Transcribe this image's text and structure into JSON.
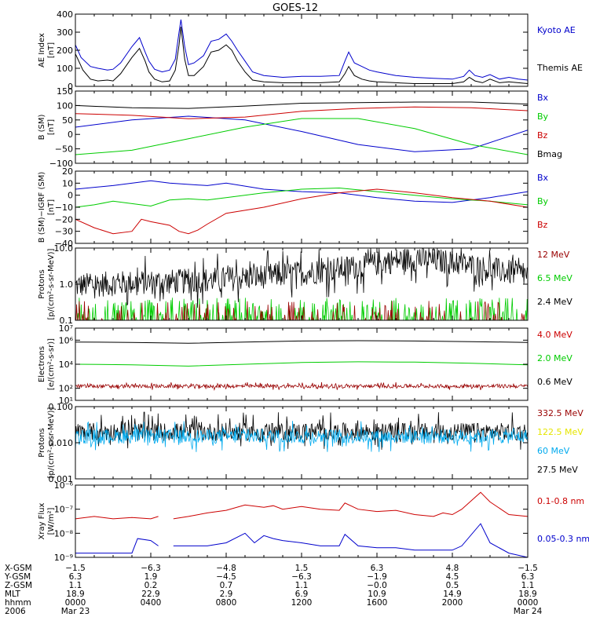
{
  "title": "GOES-12",
  "colors": {
    "black": "#000000",
    "blue": "#0000cc",
    "green": "#00cc00",
    "red": "#cc0000",
    "darkred": "#990000",
    "yellow": "#e6e600",
    "cyan": "#00aaee"
  },
  "chart_data": [
    {
      "type": "line",
      "panel": "ae_index",
      "ylabel_lines": [
        "AE Index",
        "[nT]"
      ],
      "ylim": [
        0,
        400
      ],
      "y_ticks": [
        0,
        100,
        200,
        300,
        400
      ],
      "legend": [
        {
          "text": "Kyoto AE",
          "color": "blue"
        },
        {
          "text": "Themis AE",
          "color": "black"
        }
      ],
      "series": [
        {
          "name": "Kyoto AE",
          "color": "blue",
          "x": [
            0,
            0.3,
            0.8,
            1.2,
            1.7,
            2,
            2.4,
            3.0,
            3.4,
            3.7,
            3.9,
            4.2,
            4.6,
            5.0,
            5.3,
            5.5,
            5.6,
            5.8,
            6.0,
            6.3,
            6.8,
            7.2,
            7.6,
            8.0,
            8.3,
            8.6,
            9.0,
            9.4,
            10,
            11,
            12,
            13,
            14,
            14.3,
            14.5,
            14.8,
            15.2,
            15.6,
            16,
            17,
            18,
            19,
            20,
            20.6,
            20.9,
            21.2,
            21.6,
            22,
            22.5,
            23,
            23.5,
            24
          ],
          "y": [
            230,
            160,
            110,
            100,
            90,
            95,
            130,
            220,
            270,
            190,
            140,
            95,
            80,
            90,
            150,
            300,
            370,
            220,
            120,
            130,
            170,
            250,
            260,
            290,
            250,
            200,
            140,
            80,
            60,
            50,
            55,
            55,
            60,
            140,
            190,
            130,
            110,
            90,
            80,
            60,
            50,
            45,
            40,
            55,
            90,
            60,
            50,
            65,
            40,
            50,
            40,
            35
          ]
        },
        {
          "name": "Themis AE",
          "color": "black",
          "x": [
            0,
            0.4,
            0.8,
            1.2,
            1.7,
            2,
            2.4,
            3.0,
            3.4,
            3.7,
            3.9,
            4.2,
            4.6,
            5.0,
            5.3,
            5.5,
            5.6,
            5.8,
            6.0,
            6.3,
            6.8,
            7.2,
            7.6,
            8.0,
            8.3,
            8.6,
            9.0,
            9.4,
            10,
            11,
            12,
            13,
            14,
            14.3,
            14.5,
            14.8,
            15.2,
            15.6,
            16,
            17,
            18,
            19,
            20,
            20.6,
            20.9,
            21.2,
            21.6,
            22,
            22.5,
            23,
            23.5,
            24
          ],
          "y": [
            180,
            90,
            40,
            30,
            35,
            30,
            70,
            160,
            210,
            140,
            80,
            40,
            25,
            30,
            90,
            230,
            330,
            150,
            60,
            60,
            110,
            190,
            200,
            230,
            200,
            140,
            80,
            35,
            25,
            20,
            20,
            20,
            25,
            70,
            110,
            60,
            40,
            30,
            25,
            20,
            15,
            15,
            15,
            25,
            50,
            30,
            20,
            40,
            20,
            25,
            20,
            15
          ]
        }
      ]
    },
    {
      "type": "line",
      "panel": "b_sm",
      "ylabel_lines": [
        "B (SM)",
        "[nT]"
      ],
      "ylim": [
        -100,
        150
      ],
      "y_ticks": [
        -100,
        -50,
        0,
        50,
        100,
        150
      ],
      "legend": [
        {
          "text": "Bx",
          "color": "blue"
        },
        {
          "text": "By",
          "color": "green"
        },
        {
          "text": "Bz",
          "color": "red"
        },
        {
          "text": "Bmag",
          "color": "black"
        }
      ],
      "series": [
        {
          "name": "Bx",
          "color": "blue",
          "x": [
            0,
            3,
            6,
            9,
            12,
            15,
            18,
            21,
            24
          ],
          "y": [
            25,
            50,
            63,
            50,
            10,
            -35,
            -60,
            -50,
            15
          ]
        },
        {
          "name": "By",
          "color": "green",
          "x": [
            0,
            3,
            6,
            9,
            12,
            15,
            18,
            21,
            24
          ],
          "y": [
            -70,
            -55,
            -15,
            25,
            55,
            55,
            20,
            -35,
            -70
          ]
        },
        {
          "name": "Bz",
          "color": "red",
          "x": [
            0,
            3,
            6,
            9,
            12,
            15,
            18,
            21,
            24
          ],
          "y": [
            72,
            66,
            54,
            60,
            80,
            90,
            95,
            92,
            82
          ]
        },
        {
          "name": "Bmag",
          "color": "black",
          "x": [
            0,
            3,
            6,
            9,
            12,
            15,
            18,
            21,
            24
          ],
          "y": [
            100,
            92,
            90,
            98,
            108,
            110,
            112,
            112,
            105
          ]
        }
      ]
    },
    {
      "type": "line",
      "panel": "b_minus_igrf",
      "ylabel_lines": [
        "B (SM)−IGRF (SM)",
        "[nT]"
      ],
      "ylim": [
        -40,
        20
      ],
      "y_ticks": [
        -40,
        -30,
        -20,
        -10,
        0,
        10,
        20
      ],
      "legend": [
        {
          "text": "Bx",
          "color": "blue"
        },
        {
          "text": "By",
          "color": "green"
        },
        {
          "text": "Bz",
          "color": "red"
        }
      ],
      "series": [
        {
          "name": "Bx",
          "color": "blue",
          "x": [
            0,
            2,
            4,
            5,
            6,
            7,
            8,
            10,
            12,
            14,
            16,
            18,
            20,
            22,
            24
          ],
          "y": [
            5,
            8,
            12,
            10,
            9,
            8,
            10,
            5,
            3,
            2,
            -2,
            -5,
            -6,
            -2,
            3
          ]
        },
        {
          "name": "By",
          "color": "green",
          "x": [
            0,
            1,
            2,
            3,
            4,
            5,
            6,
            7,
            8,
            10,
            12,
            14,
            16,
            18,
            20,
            22,
            24
          ],
          "y": [
            -10,
            -8,
            -5,
            -7,
            -9,
            -4,
            -3,
            -4,
            -2,
            2,
            5,
            6,
            3,
            0,
            -3,
            -5,
            -8
          ]
        },
        {
          "name": "Bz",
          "color": "red",
          "x": [
            0,
            1,
            2,
            3,
            3.5,
            4,
            5,
            5.5,
            6,
            6.5,
            7,
            8,
            10,
            12,
            14,
            16,
            18,
            20,
            22,
            24
          ],
          "y": [
            -20,
            -27,
            -32,
            -30,
            -20,
            -22,
            -25,
            -30,
            -32,
            -29,
            -24,
            -15,
            -10,
            -3,
            2,
            5,
            2,
            -2,
            -5,
            -10
          ]
        }
      ]
    },
    {
      "type": "line",
      "panel": "protons_low",
      "ylabel_lines": [
        "Protons",
        "[p/(cm²-s-sr-MeV)]"
      ],
      "yscale": "log",
      "ylim": [
        0.1,
        10
      ],
      "y_ticks": [
        0.1,
        1.0,
        10.0
      ],
      "y_tick_labels": [
        "0.1",
        "1.0",
        "10.0"
      ],
      "legend": [
        {
          "text": "12 MeV",
          "color": "darkred"
        },
        {
          "text": "6.5 MeV",
          "color": "green"
        },
        {
          "text": "2.4 MeV",
          "color": "black"
        }
      ],
      "series": [
        {
          "name": "2.4 MeV",
          "color": "black",
          "x": [
            0,
            3,
            6,
            9,
            12,
            15,
            17,
            18,
            20,
            22,
            24
          ],
          "y": [
            0.9,
            1.1,
            1.2,
            1.5,
            2.0,
            3.0,
            4.5,
            5.0,
            4.0,
            2.5,
            1.8
          ],
          "noise": 0.35
        },
        {
          "name": "6.5 MeV",
          "color": "green",
          "x": [
            0,
            24
          ],
          "y": [
            0.12,
            0.12
          ],
          "spiky": 0.3
        },
        {
          "name": "12 MeV",
          "color": "darkred",
          "x": [
            0,
            24
          ],
          "y": [
            0.1,
            0.1
          ],
          "spiky": 0.15
        }
      ]
    },
    {
      "type": "line",
      "panel": "electrons",
      "ylabel_lines": [
        "Electrons",
        "[e/(cm²-s-sr)]"
      ],
      "yscale": "log",
      "ylim": [
        10,
        10000000
      ],
      "y_ticks": [
        10,
        100,
        10000,
        1000000,
        10000000
      ],
      "y_tick_labels": [
        "10¹",
        "10²",
        "10⁴",
        "10⁶",
        "10⁷"
      ],
      "legend": [
        {
          "text": "4.0 MeV",
          "color": "red"
        },
        {
          "text": "2.0 MeV",
          "color": "green"
        },
        {
          "text": "0.6 MeV",
          "color": "black"
        }
      ],
      "series": [
        {
          "name": "0.6 MeV",
          "color": "black",
          "x": [
            0,
            3,
            6,
            9,
            12,
            15,
            18,
            21,
            24
          ],
          "y": [
            700000,
            650000,
            550000,
            700000,
            850000,
            900000,
            850000,
            750000,
            650000
          ]
        },
        {
          "name": "2.0 MeV",
          "color": "green",
          "x": [
            0,
            3,
            6,
            9,
            12,
            15,
            18,
            21,
            24
          ],
          "y": [
            10000,
            9000,
            7000,
            10000,
            14000,
            16000,
            15000,
            12000,
            9000
          ]
        },
        {
          "name": "4.0 MeV",
          "color": "darkred",
          "x": [
            0,
            24
          ],
          "y": [
            150,
            150
          ],
          "noise": 0.15
        }
      ]
    },
    {
      "type": "line",
      "panel": "protons_high",
      "ylabel_lines": [
        "Protons",
        "[p/(cm²-s-sr-MeV)]"
      ],
      "yscale": "log",
      "ylim": [
        0.001,
        0.1
      ],
      "y_ticks": [
        0.001,
        0.01,
        0.1
      ],
      "y_tick_labels": [
        "0.001",
        "0.010",
        "0.100"
      ],
      "legend": [
        {
          "text": "332.5 MeV",
          "color": "darkred"
        },
        {
          "text": "122.5 MeV",
          "color": "yellow"
        },
        {
          "text": "60 MeV",
          "color": "cyan"
        },
        {
          "text": "27.5 MeV",
          "color": "black"
        }
      ],
      "series": [
        {
          "name": "27.5 MeV",
          "color": "black",
          "x": [
            0,
            24
          ],
          "y": [
            0.02,
            0.02
          ],
          "noise": 0.25
        },
        {
          "name": "60 MeV",
          "color": "cyan",
          "x": [
            0,
            24
          ],
          "y": [
            0.015,
            0.015
          ],
          "noise": 0.2
        }
      ]
    },
    {
      "type": "line",
      "panel": "xray",
      "ylabel_lines": [
        "Xray Flux",
        "[W/m²]"
      ],
      "yscale": "log",
      "ylim": [
        1e-09,
        1e-06
      ],
      "y_ticks": [
        1e-09,
        1e-08,
        1e-07,
        1e-06
      ],
      "y_tick_labels": [
        "10⁻⁹",
        "10⁻⁸",
        "10⁻⁷",
        "10⁻⁶"
      ],
      "legend": [
        {
          "text": "0.1-0.8 nm",
          "color": "red"
        },
        {
          "text": "0.05-0.3 nm",
          "color": "blue"
        }
      ],
      "series": [
        {
          "name": "0.1-0.8 nm",
          "color": "red",
          "x": [
            0,
            1,
            2,
            3,
            4,
            4.4,
            null,
            5.2,
            6,
            7,
            8,
            9,
            10,
            10.5,
            11,
            12,
            13,
            14,
            14.3,
            15,
            16,
            17,
            18,
            19,
            19.5,
            20,
            20.5,
            21.5,
            22,
            23,
            24
          ],
          "y": [
            4e-08,
            5e-08,
            4e-08,
            4.5e-08,
            4e-08,
            5e-08,
            null,
            4e-08,
            5e-08,
            7e-08,
            9e-08,
            1.5e-07,
            1.2e-07,
            1.4e-07,
            1e-07,
            1.3e-07,
            1e-07,
            9e-08,
            1.8e-07,
            1e-07,
            8e-08,
            9e-08,
            6e-08,
            5e-08,
            7e-08,
            6e-08,
            1e-07,
            5e-07,
            2e-07,
            6e-08,
            5e-08
          ]
        },
        {
          "name": "0.05-0.3 nm",
          "color": "blue",
          "x": [
            0,
            1,
            2,
            3,
            3.3,
            4,
            4.4,
            null,
            5.2,
            6,
            7,
            8,
            9,
            9.5,
            10,
            10.5,
            11,
            12,
            13,
            14,
            14.3,
            15,
            16,
            17,
            18,
            19,
            20,
            20.5,
            21.5,
            22,
            23,
            24
          ],
          "y": [
            1.5e-09,
            1.5e-09,
            1.5e-09,
            1.5e-09,
            6e-09,
            5e-09,
            3e-09,
            null,
            3e-09,
            3e-09,
            3e-09,
            4e-09,
            1e-08,
            4e-09,
            8e-09,
            6e-09,
            5e-09,
            4e-09,
            3e-09,
            3e-09,
            9e-09,
            3e-09,
            2.5e-09,
            2.5e-09,
            2e-09,
            2e-09,
            2e-09,
            3e-09,
            2.5e-08,
            4e-09,
            1.5e-09,
            1e-09
          ]
        }
      ]
    }
  ],
  "x_axis": {
    "rows": [
      {
        "label": "X-GSM",
        "values": [
          "−1.5",
          "−6.3",
          "−4.8",
          "1.5",
          "6.3",
          "4.8",
          "−1.5"
        ]
      },
      {
        "label": "Y-GSM",
        "values": [
          "6.3",
          "1.9",
          "−4.5",
          "−6.3",
          "−1.9",
          "4.5",
          "6.3"
        ]
      },
      {
        "label": "Z-GSM",
        "values": [
          "1.1",
          "0.2",
          "0.7",
          "1.1",
          "−0.0",
          "0.5",
          "1.1"
        ]
      },
      {
        "label": "MLT",
        "values": [
          "18.9",
          "22.9",
          "2.9",
          "6.9",
          "10.9",
          "14.9",
          "18.9"
        ]
      },
      {
        "label": "hhmm",
        "values": [
          "0000",
          "0400",
          "0800",
          "1200",
          "1600",
          "2000",
          "0000"
        ]
      }
    ],
    "year_label": "2006",
    "date_start": "Mar 23",
    "date_end": "Mar 24",
    "tick_hours": [
      0,
      4,
      8,
      12,
      16,
      20,
      24
    ]
  }
}
